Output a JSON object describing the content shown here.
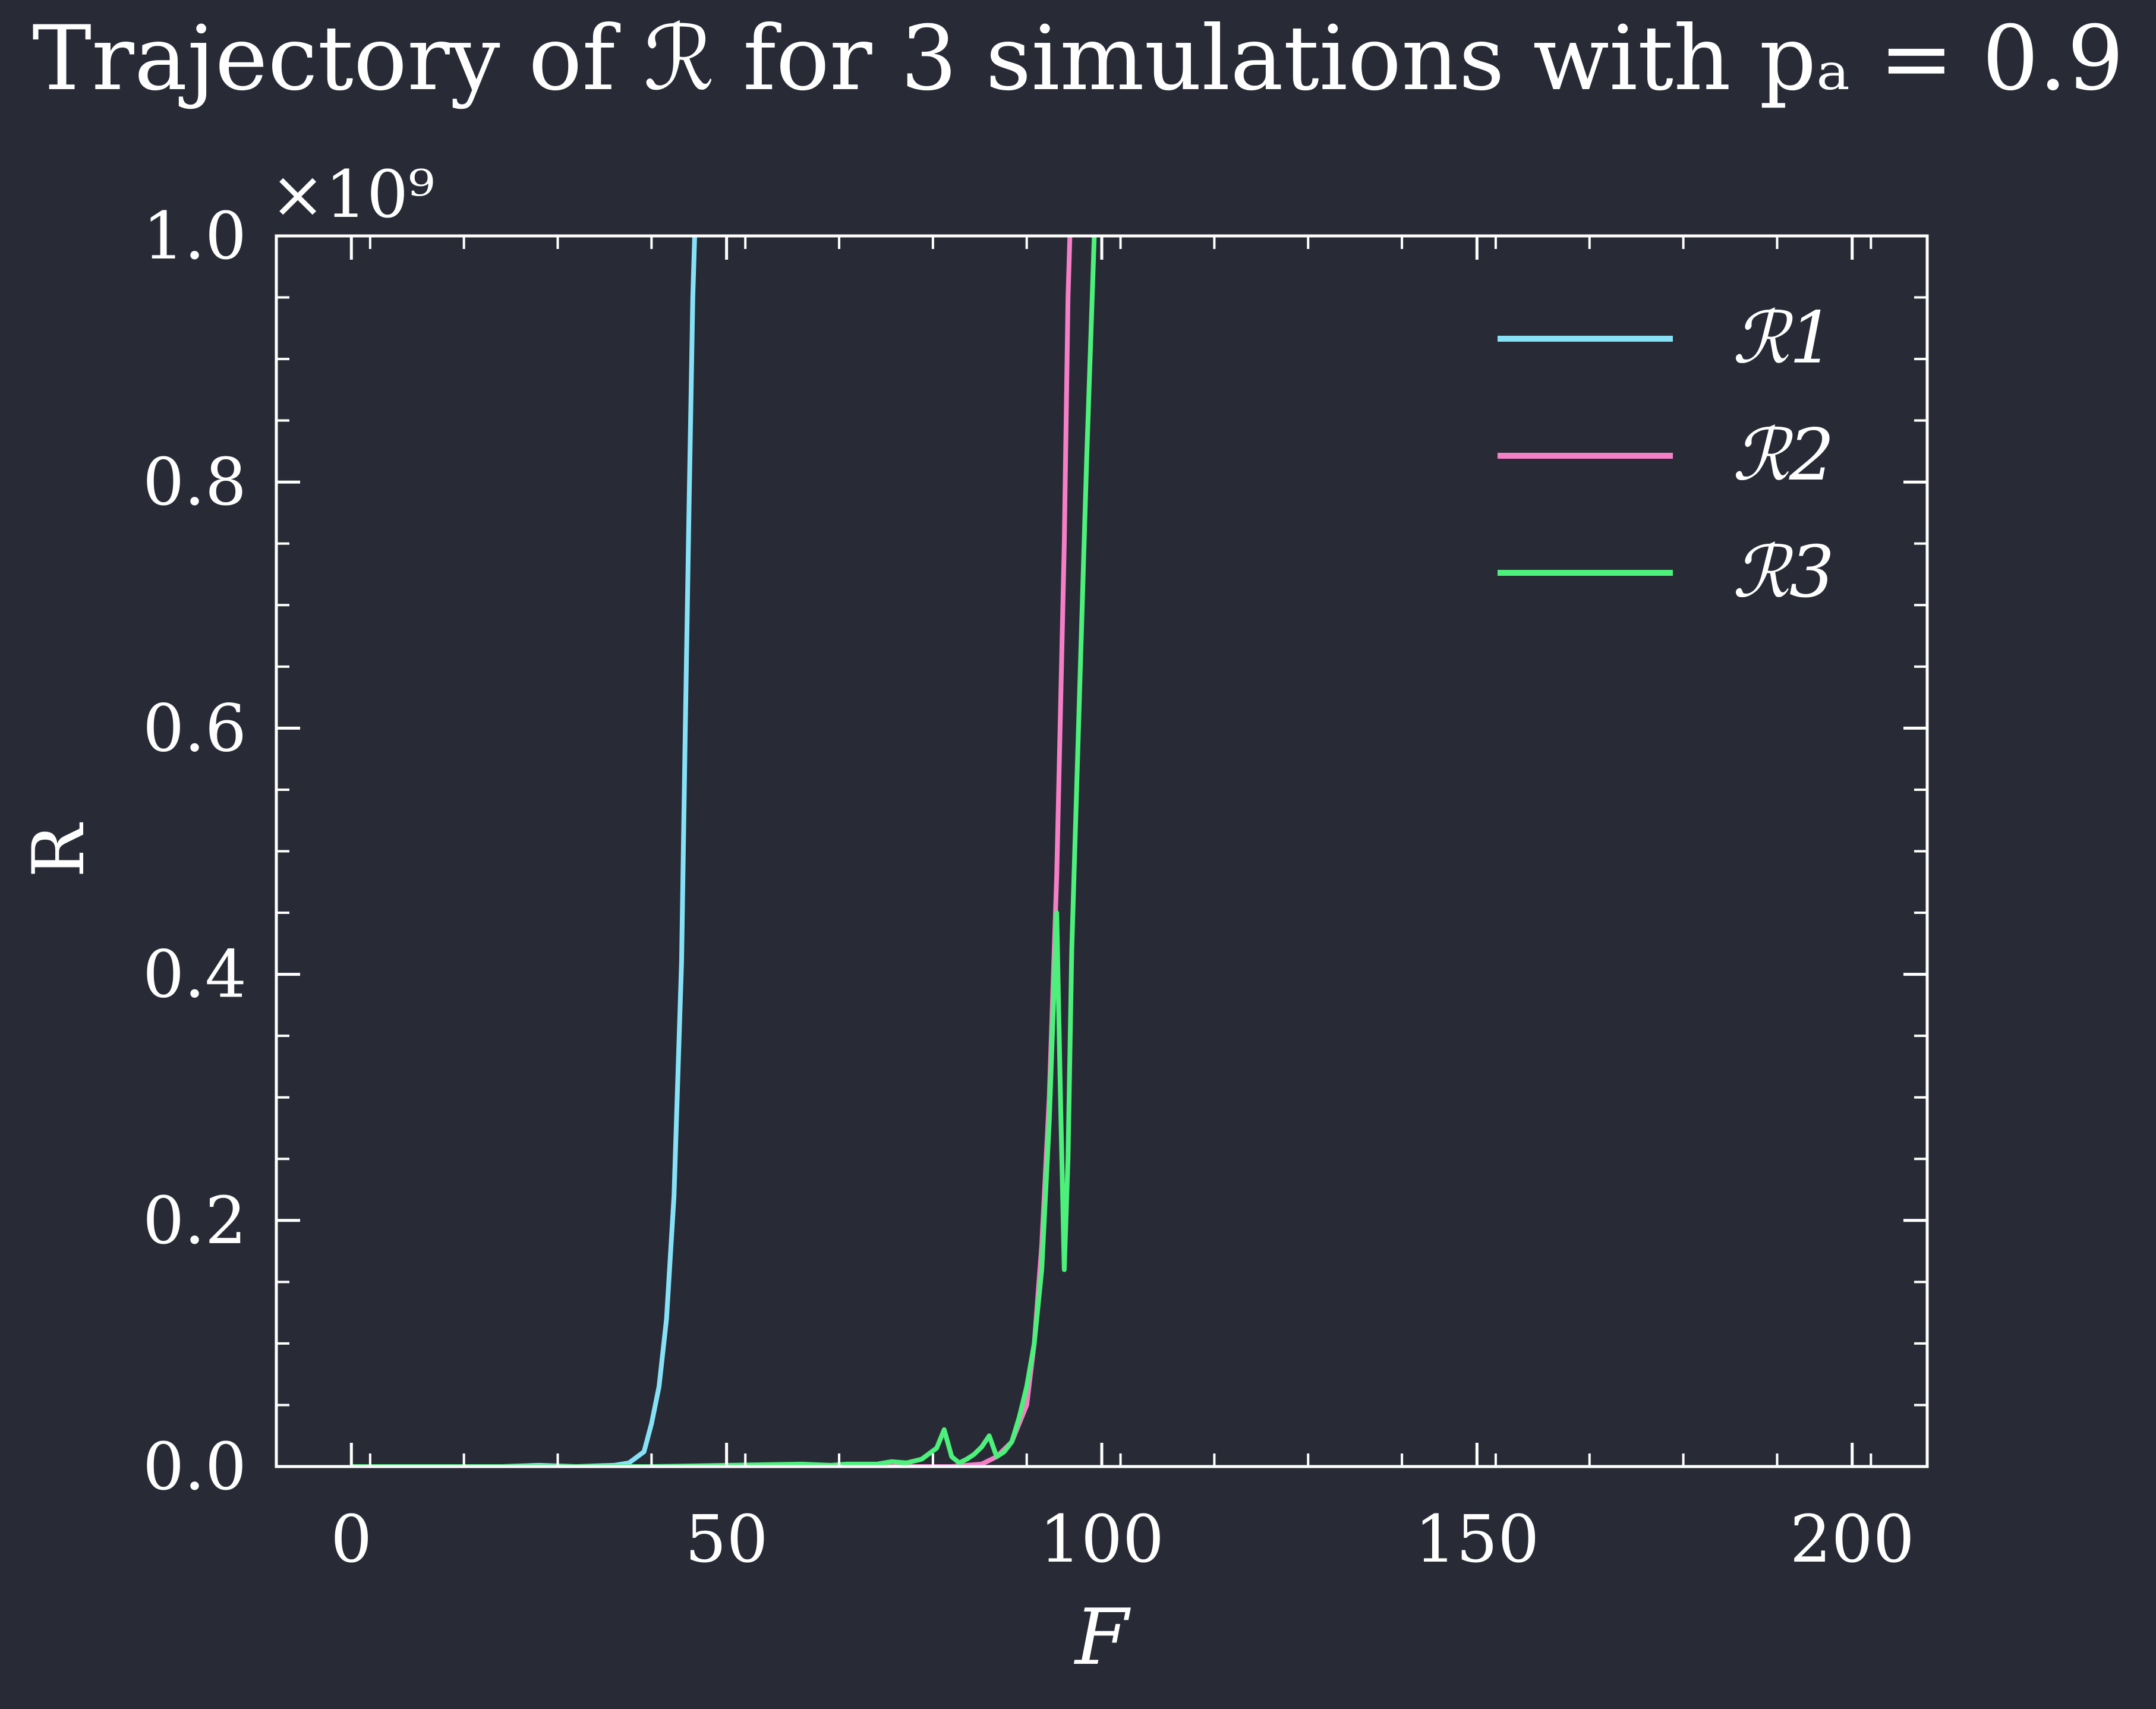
{
  "chart_data": {
    "type": "line",
    "title": "Trajectory of ℛ for 3 simulations with pₐ = 0.9",
    "xlabel": "F",
    "ylabel": "R",
    "y_multiplier_label": "×10⁹",
    "xlim": [
      -10,
      210
    ],
    "ylim": [
      0,
      1.0
    ],
    "x_ticks": [
      0,
      50,
      100,
      150,
      200
    ],
    "x_tick_labels": [
      "0",
      "50",
      "100",
      "150",
      "200"
    ],
    "y_ticks": [
      0,
      0.2,
      0.4,
      0.6,
      0.8,
      1.0
    ],
    "y_tick_labels": [
      "0.0",
      "0.2",
      "0.4",
      "0.6",
      "0.8",
      "1.0"
    ],
    "grid": false,
    "legend": "top-right",
    "series": [
      {
        "name": "ℛ1",
        "color": "#86e1f7",
        "x": [
          0,
          10,
          20,
          25,
          30,
          35,
          37,
          39,
          40,
          41,
          42,
          43,
          44,
          44.5,
          45,
          45.5,
          46,
          46.3
        ],
        "y": [
          0,
          0,
          0,
          0.001,
          0,
          0.001,
          0.003,
          0.012,
          0.035,
          0.065,
          0.12,
          0.22,
          0.41,
          0.6,
          0.78,
          0.95,
          1.05,
          1.2
        ]
      },
      {
        "name": "ℛ2",
        "color": "#f47fc6",
        "x": [
          0,
          20,
          40,
          60,
          70,
          80,
          84,
          86,
          88,
          90,
          91,
          92,
          93,
          94,
          95,
          95.5,
          96
        ],
        "y": [
          0,
          0,
          0,
          0,
          0,
          0,
          0.002,
          0.008,
          0.02,
          0.05,
          0.1,
          0.18,
          0.3,
          0.48,
          0.75,
          0.95,
          1.05
        ]
      },
      {
        "name": "ℛ3",
        "color": "#4cf07a",
        "x": [
          0,
          20,
          40,
          60,
          64,
          66,
          70,
          72,
          74,
          76,
          78,
          79,
          80,
          81,
          82,
          83,
          84,
          85,
          86,
          87,
          88,
          89,
          90,
          91,
          92,
          93,
          94,
          94.5,
          95,
          95.5,
          96,
          97,
          98,
          99,
          99.3
        ],
        "y": [
          0,
          0,
          0,
          0.002,
          0.001,
          0.002,
          0.002,
          0.004,
          0.003,
          0.006,
          0.015,
          0.03,
          0.008,
          0.003,
          0.006,
          0.01,
          0.016,
          0.025,
          0.008,
          0.012,
          0.02,
          0.04,
          0.065,
          0.1,
          0.16,
          0.28,
          0.45,
          0.3,
          0.16,
          0.25,
          0.42,
          0.62,
          0.82,
          1.0,
          1.05
        ]
      }
    ]
  }
}
